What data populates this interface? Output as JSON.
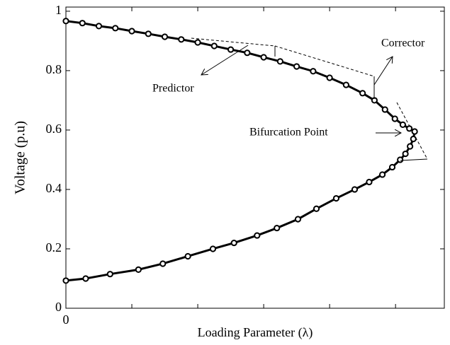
{
  "chart_data": {
    "type": "line",
    "xlabel": "Loading Parameter (λ)",
    "ylabel": "Voltage  (p.u)",
    "x": [
      0,
      0.25,
      0.5,
      0.75,
      1.0,
      1.25,
      1.5,
      1.75,
      2.0,
      2.25,
      2.5,
      2.75,
      3.0,
      3.25,
      3.5,
      3.75,
      4.0,
      4.25,
      4.5,
      4.68,
      4.84,
      4.99,
      5.11,
      5.21,
      5.29,
      5.27,
      5.22,
      5.15,
      5.07,
      4.95,
      4.8,
      4.6,
      4.38,
      4.1,
      3.8,
      3.52,
      3.2,
      2.9,
      2.55,
      2.23,
      1.85,
      1.47,
      1.1,
      0.67,
      0.3,
      0
    ],
    "series": [
      {
        "color": "#000000",
        "values": [
          0.967,
          0.96,
          0.95,
          0.943,
          0.933,
          0.924,
          0.914,
          0.905,
          0.895,
          0.883,
          0.871,
          0.86,
          0.845,
          0.831,
          0.814,
          0.798,
          0.776,
          0.752,
          0.724,
          0.7,
          0.669,
          0.638,
          0.618,
          0.605,
          0.595,
          0.57,
          0.545,
          0.52,
          0.5,
          0.475,
          0.45,
          0.425,
          0.4,
          0.37,
          0.335,
          0.3,
          0.27,
          0.245,
          0.22,
          0.2,
          0.175,
          0.15,
          0.13,
          0.115,
          0.1,
          0.093
        ]
      }
    ],
    "xlim": [
      0,
      5.74
    ],
    "xticks": [
      0
    ],
    "xminorticks": [
      1,
      2,
      3,
      4,
      5
    ],
    "ylim": [
      0,
      1.014
    ],
    "yticks": [
      0,
      0.2,
      0.4,
      0.6,
      0.8,
      1
    ],
    "annotations": [
      "Predictor",
      "Corrector",
      "Bifurcation Point"
    ]
  }
}
